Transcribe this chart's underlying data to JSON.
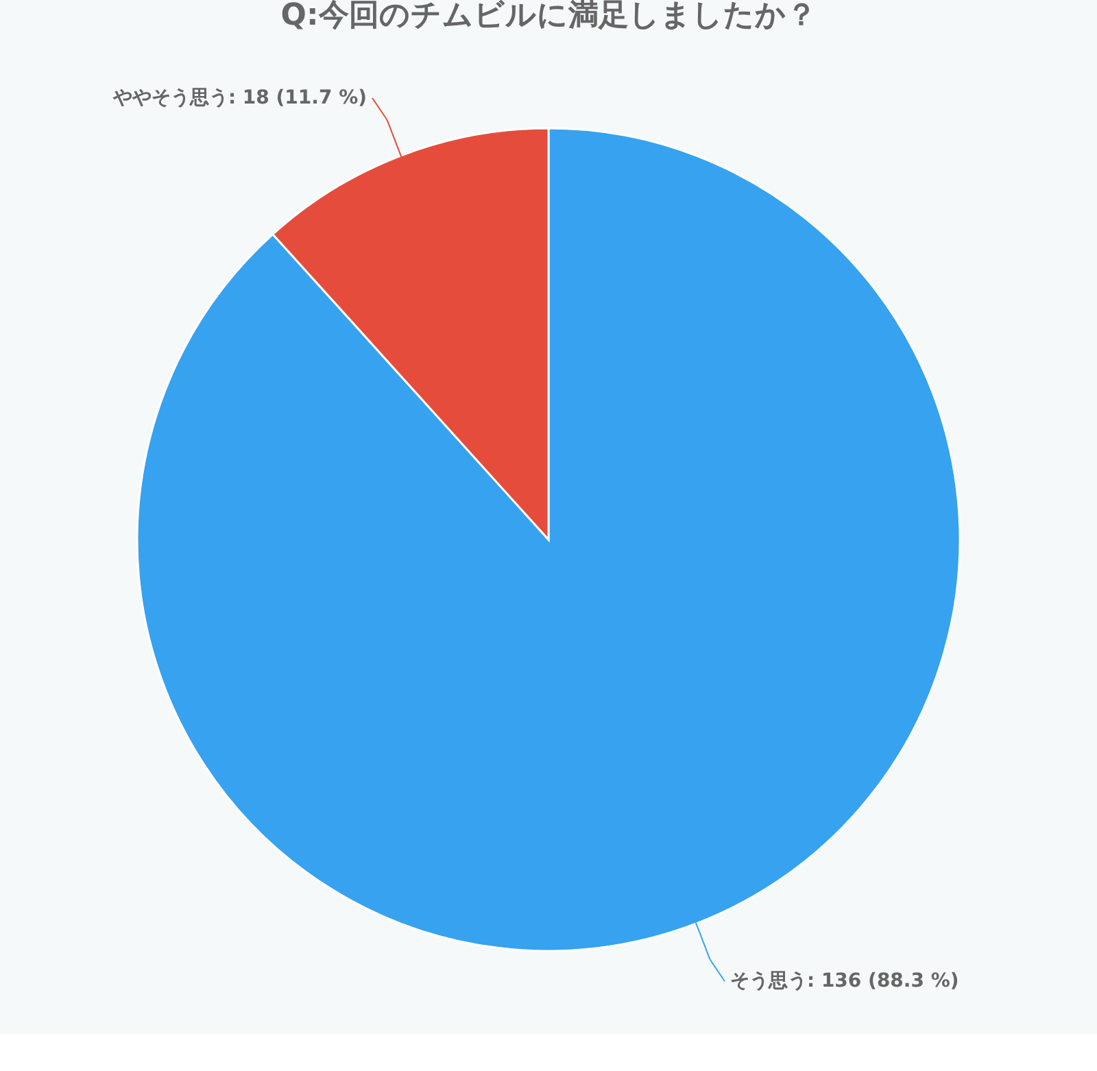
{
  "chart_data": {
    "type": "pie",
    "title": "Q:今回のチムビルに満足しましたか？",
    "categories": [
      "そう思う",
      "ややそう思う"
    ],
    "values": [
      136,
      18
    ],
    "colors": [
      "#36a2f0",
      "#e64c3c"
    ],
    "value_labels": [
      "136 (88.3 %)",
      "18 (11.7 %)"
    ],
    "legend": false
  }
}
